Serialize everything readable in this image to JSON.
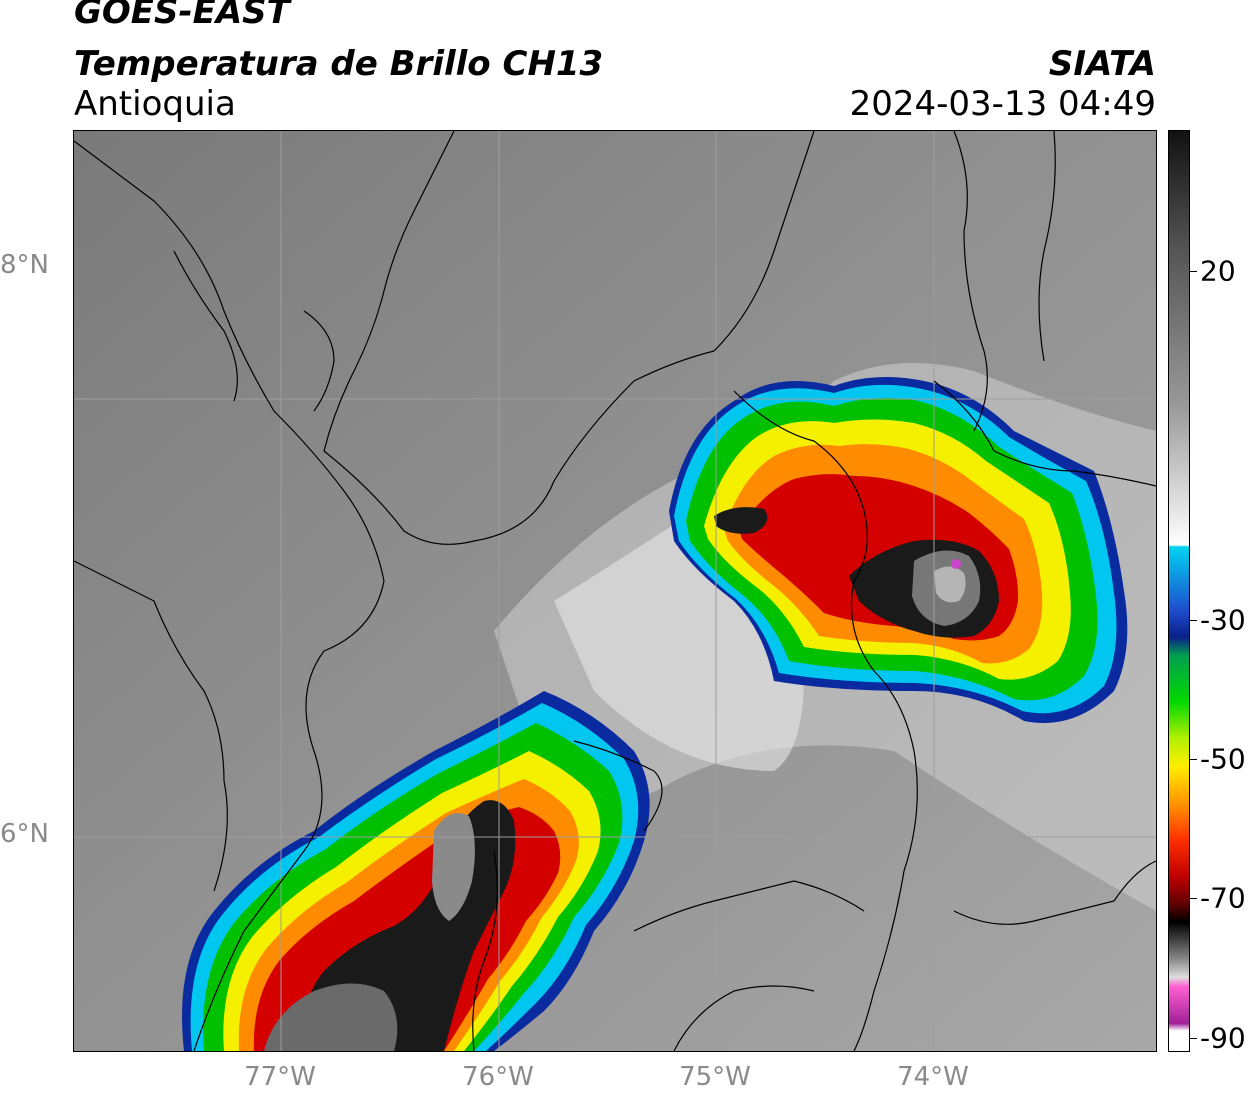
{
  "header": {
    "satellite": "GOES-EAST",
    "product": "Temperatura de Brillo CH13",
    "region": "Antioquia",
    "organization": "SIATA",
    "timestamp": "2024-03-13 04:49"
  },
  "map": {
    "lat_labels": [
      "8°N",
      "6°N"
    ],
    "lon_labels": [
      "77°W",
      "76°W",
      "75°W",
      "74°W"
    ]
  },
  "colorbar": {
    "ticks": [
      "20",
      "-30",
      "-50",
      "-70",
      "-90"
    ]
  },
  "colors": {
    "warm_gray": "#8c8c8c",
    "cold_black": "#1a1a1a",
    "red": "#d40000",
    "yellow": "#f5f000",
    "green": "#00c800",
    "cyan": "#00d4f0",
    "magenta": "#cc44cc"
  }
}
